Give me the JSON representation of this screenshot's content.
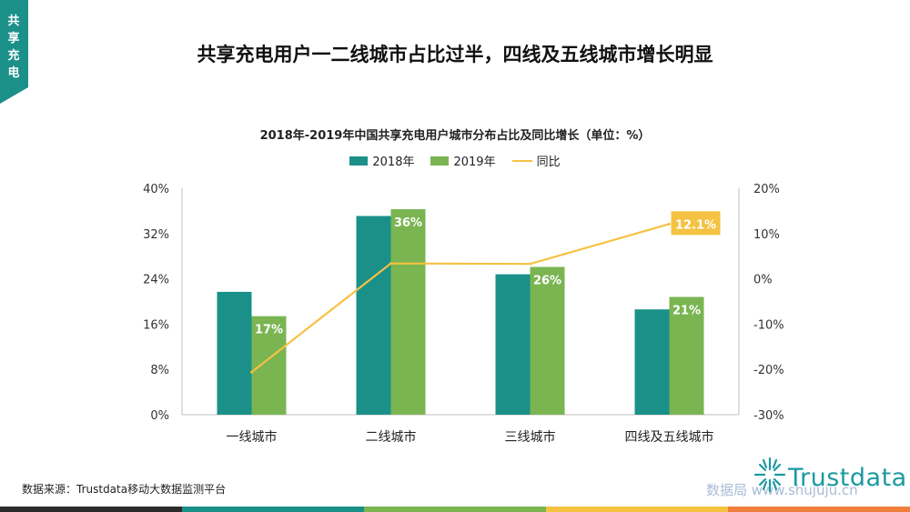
{
  "side_tab": {
    "label": "共享充电"
  },
  "page_title": "共享充电用户一二线城市占比过半，四线及五线城市增长明显",
  "chart_data": {
    "type": "bar",
    "title": "2018年-2019年中国共享充电用户城市分布占比及同比增长（单位：%）",
    "categories": [
      "一线城市",
      "二线城市",
      "三线城市",
      "四线及五线城市"
    ],
    "series": [
      {
        "name": "2018年",
        "type": "bar",
        "axis": "left",
        "color": "#1a9089",
        "values": [
          21.7,
          35.1,
          24.8,
          18.6
        ],
        "labels": [
          "",
          "",
          "",
          ""
        ]
      },
      {
        "name": "2019年",
        "type": "bar",
        "axis": "left",
        "color": "#7ab552",
        "values": [
          17.4,
          36.3,
          26.1,
          20.8
        ],
        "labels": [
          "17%",
          "36%",
          "26%",
          "21%"
        ]
      },
      {
        "name": "同比",
        "type": "line",
        "axis": "right",
        "color": "#f5c242",
        "values": [
          -20.6,
          3.4,
          3.3,
          12.1
        ],
        "labels": [
          "",
          "",
          "",
          "12.1%"
        ]
      }
    ],
    "y_left": {
      "min": 0,
      "max": 40,
      "ticks": [
        "0%",
        "8%",
        "16%",
        "24%",
        "32%",
        "40%"
      ]
    },
    "y_right": {
      "min": -30,
      "max": 20,
      "ticks": [
        "-30%",
        "-20%",
        "-10%",
        "0%",
        "10%",
        "20%"
      ]
    },
    "grid": false,
    "legend_position": "top"
  },
  "source": "数据来源：Trustdata移动大数据监测平台",
  "watermark": "数据局  www.shujuju.cn",
  "logo": {
    "text": "Trustdata"
  },
  "colors": {
    "teal": "#1a9089",
    "green": "#7ab552",
    "yellow": "#f5c242",
    "dark": "#2b2b2b",
    "orange": "#f07f3c"
  }
}
